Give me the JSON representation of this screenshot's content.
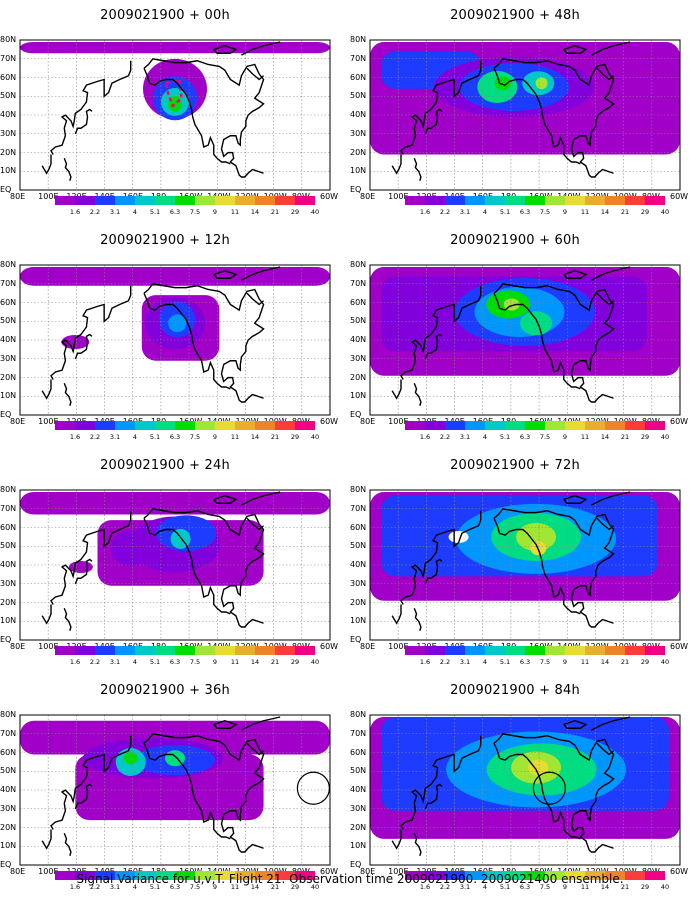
{
  "run": "2009021900",
  "panels": [
    {
      "title": "2009021900 + 00h",
      "lead": 0
    },
    {
      "title": "2009021900 + 48h",
      "lead": 48
    },
    {
      "title": "2009021900 + 12h",
      "lead": 12
    },
    {
      "title": "2009021900 + 60h",
      "lead": 60
    },
    {
      "title": "2009021900 + 24h",
      "lead": 24
    },
    {
      "title": "2009021900 + 72h",
      "lead": 72
    },
    {
      "title": "2009021900 + 36h",
      "lead": 36
    },
    {
      "title": "2009021900 + 84h",
      "lead": 84
    }
  ],
  "lat_labels": [
    "80N",
    "70N",
    "60N",
    "50N",
    "40N",
    "30N",
    "20N",
    "10N",
    "EQ"
  ],
  "lon_labels": [
    "80E",
    "100E",
    "120E",
    "140E",
    "160E",
    "180",
    "160W",
    "140W",
    "120W",
    "100W",
    "80W",
    "60W"
  ],
  "colorbar": {
    "labels": [
      "1.6",
      "2.2",
      "3.1",
      "4",
      "5.1",
      "6.3",
      "7.5",
      "9",
      "11",
      "14",
      "21",
      "29",
      "40"
    ],
    "colors": [
      "#a000c8",
      "#8200dc",
      "#1e3cff",
      "#0096ff",
      "#00c8c8",
      "#00dc82",
      "#00dc00",
      "#a0e632",
      "#e6dc32",
      "#e6af2d",
      "#f08228",
      "#fa3c3c",
      "#f00082"
    ]
  },
  "caption": "Signal Variance for u,v,T. Flight 21. Observation time 2009021900. 2009021400 ensemble."
}
